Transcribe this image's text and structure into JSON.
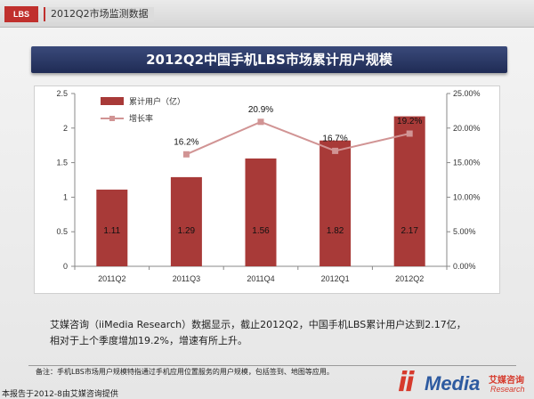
{
  "header": {
    "tag": "LBS",
    "title": "2012Q2市场监测数据"
  },
  "banner": {
    "title": "2012Q2中国手机LBS市场累计用户规模"
  },
  "chart_data": {
    "type": "bar",
    "title": "2012Q2中国手机LBS市场累计用户规模",
    "categories": [
      "2011Q2",
      "2011Q3",
      "2011Q4",
      "2012Q1",
      "2012Q2"
    ],
    "series": [
      {
        "name": "累计用户（亿）",
        "type": "bar",
        "axis": "left",
        "values": [
          1.11,
          1.29,
          1.56,
          1.82,
          2.17
        ],
        "labels": [
          "1.11",
          "1.29",
          "1.56",
          "1.82",
          "2.17"
        ]
      },
      {
        "name": "增长率",
        "type": "line",
        "axis": "right",
        "values": [
          null,
          16.2,
          20.9,
          16.7,
          19.2
        ],
        "labels": [
          "",
          "16.2%",
          "20.9%",
          "16.7%",
          "19.2%"
        ]
      }
    ],
    "ylim": [
      0,
      2.5
    ],
    "yticks": [
      "0",
      "0.5",
      "1",
      "1.5",
      "2",
      "2.5"
    ],
    "y2lim": [
      0,
      25
    ],
    "y2ticks": [
      "0.00%",
      "5.00%",
      "10.00%",
      "15.00%",
      "20.00%",
      "25.00%"
    ],
    "legend": "top-left",
    "grid": false,
    "colors": {
      "bar": "#a83a38",
      "line": "#d19494"
    }
  },
  "description": {
    "line1": "艾媒咨询（iiMedia Research）数据显示，截止2012Q2，中国手机LBS累计用户达到2.17亿，",
    "line2": "相对于上个季度增加19.2%，增速有所上升。"
  },
  "note": "备注：手机LBS市场用户规模特指通过手机应用位置服务的用户规模，包括签到、地图等应用。",
  "footer": "本报告于2012-8由艾媒咨询提供",
  "logo": {
    "ii": "ii",
    "media": "Media",
    "cn": "艾媒咨询",
    "en": "Research"
  }
}
